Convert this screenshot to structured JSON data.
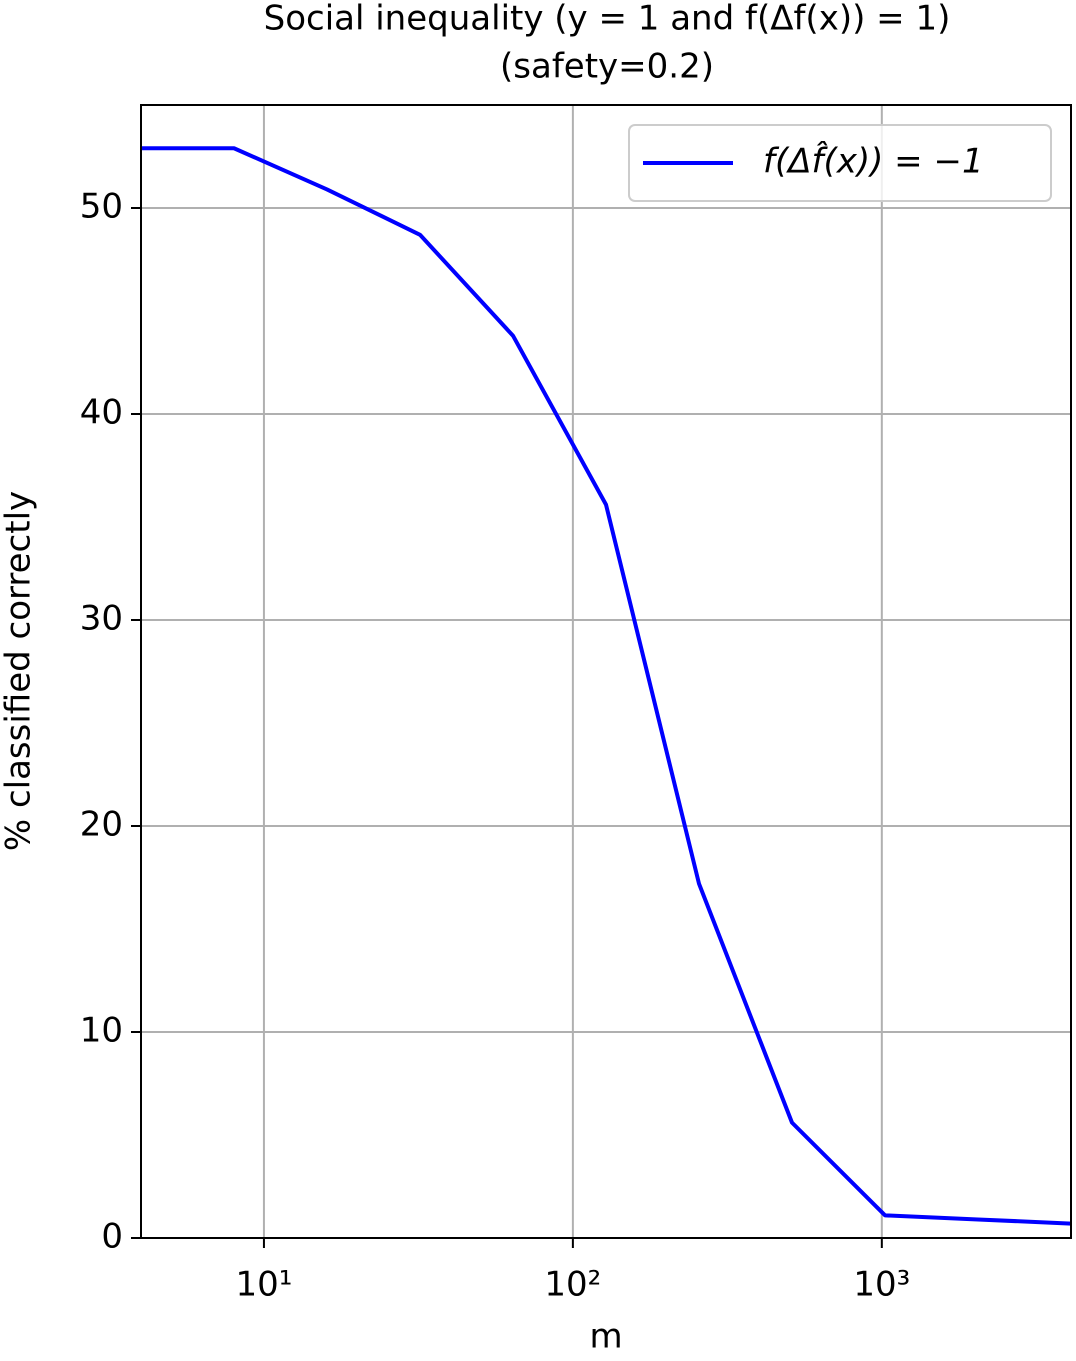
{
  "chart_data": {
    "type": "line",
    "title": "Social inequality (y = 1 and f(Δf(x)) = 1)",
    "subtitle": "(safety=0.2)",
    "x_label": "m",
    "y_label": "% classified correctly",
    "x": [
      4,
      8,
      16,
      32,
      64,
      128,
      256,
      512,
      1024,
      2048,
      4096
    ],
    "series": [
      {
        "name": "f(Δf̂(x)) = −1",
        "color": "#0000ff",
        "values": [
          52.9,
          52.9,
          50.9,
          48.7,
          43.8,
          35.6,
          17.2,
          5.6,
          1.1,
          0.9,
          0.7
        ]
      }
    ],
    "x_scale": "log",
    "xlim": [
      4,
      4096
    ],
    "xticks": [
      {
        "value": 10,
        "label": "10¹"
      },
      {
        "value": 100,
        "label": "10²"
      },
      {
        "value": 1000,
        "label": "10³"
      }
    ],
    "ylim": [
      0,
      55
    ],
    "yticks": [
      0,
      10,
      20,
      30,
      40,
      50
    ],
    "grid": true,
    "legend": "upper right"
  }
}
